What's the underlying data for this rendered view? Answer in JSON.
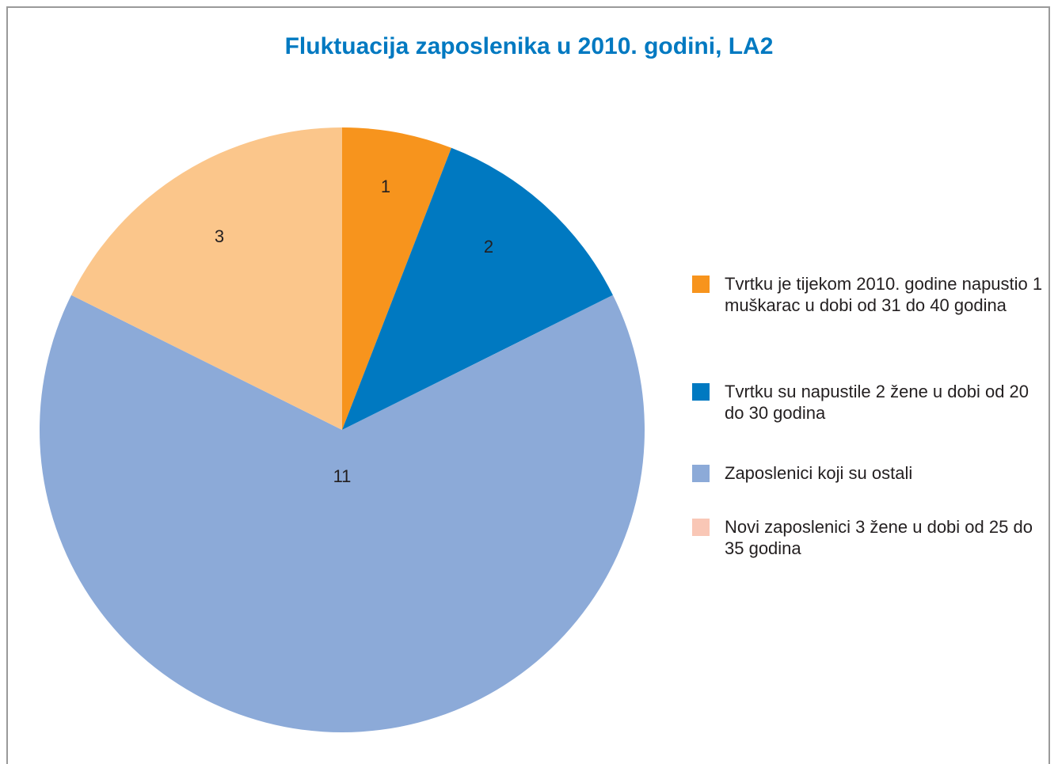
{
  "chart_data": {
    "type": "pie",
    "title": "Fluktuacija zaposlenika u 2010. godini, LA2",
    "categories": [
      "Tvrtku je tijekom 2010. godine napustio 1 muškarac u dobi od 31 do 40 godina",
      "Tvrtku su napustile 2 žene u dobi od 20 do 30 godina",
      "Zaposlenici koji su ostali",
      "Novi zaposlenici 3 žene u dobi od 25 do 35 godina"
    ],
    "values": [
      1,
      2,
      11,
      3
    ],
    "colors": [
      "#f7941d",
      "#0079c1",
      "#8caad8",
      "#fbc68b"
    ],
    "legend_colors": [
      "#f7941d",
      "#0079c1",
      "#8caad8",
      "#f9c7b6"
    ],
    "legend": "right"
  }
}
